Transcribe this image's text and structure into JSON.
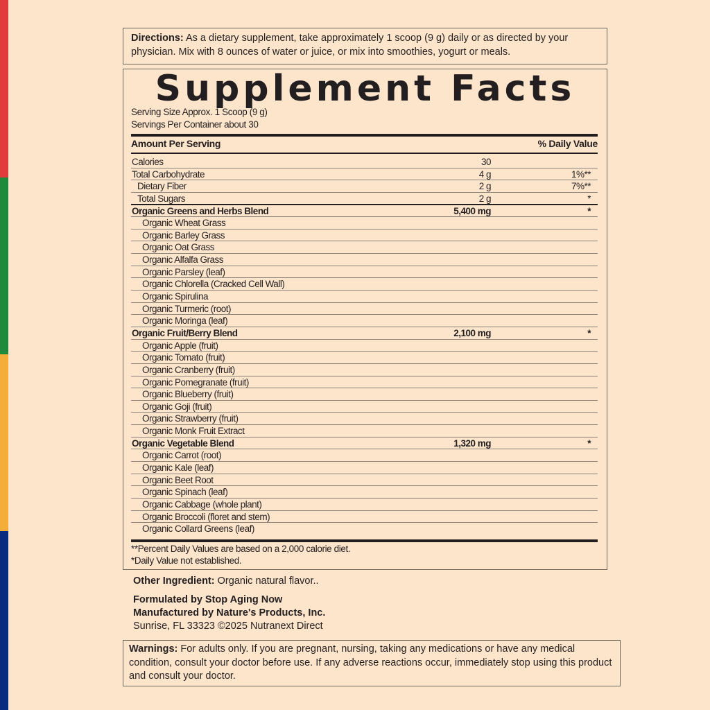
{
  "colors": {
    "background": "#fde5cc",
    "stripes": [
      "#e23b3b",
      "#1f8a3c",
      "#f5ad3a",
      "#0a2a80"
    ]
  },
  "directions": {
    "label": "Directions:",
    "text": " As a dietary supplement, take approximately 1 scoop (9 g) daily or as directed by your physician. Mix with 8 ounces of water or juice, or mix into smoothies, yogurt or meals."
  },
  "facts": {
    "title": "Supplement Facts",
    "serving_size": "Serving Size Approx. 1 Scoop (9 g)",
    "servings_per_container": "Servings Per Container about 30",
    "header_amount": "Amount Per Serving",
    "header_dv": "% Daily Value",
    "rows": [
      {
        "name": "Calories",
        "amount": "30",
        "dv": "",
        "style": "",
        "indent": 0
      },
      {
        "name": "Total Carbohydrate",
        "amount": "4 g",
        "dv": "1%**",
        "indent": 0
      },
      {
        "name": "Dietary Fiber",
        "amount": "2 g",
        "dv": "7%**",
        "indent": 1
      },
      {
        "name": "Total Sugars",
        "amount": "2 g",
        "dv": "*",
        "indent": 1
      },
      {
        "name": "Organic Greens and Herbs Blend",
        "amount": "5,400 mg",
        "dv": "*",
        "bold": true,
        "indent": 0
      },
      {
        "name": "Organic Wheat Grass",
        "indent": 2
      },
      {
        "name": "Organic Barley Grass",
        "indent": 2
      },
      {
        "name": "Organic Oat Grass",
        "indent": 2
      },
      {
        "name": "Organic Alfalfa Grass",
        "indent": 2
      },
      {
        "name": "Organic Parsley (leaf)",
        "indent": 2
      },
      {
        "name": "Organic Chlorella (Cracked Cell Wall)",
        "indent": 2
      },
      {
        "name": "Organic Spirulina",
        "indent": 2
      },
      {
        "name": "Organic Turmeric (root)",
        "indent": 2
      },
      {
        "name": "Organic Moringa (leaf)",
        "indent": 2
      },
      {
        "name": "Organic Fruit/Berry Blend",
        "amount": "2,100 mg",
        "dv": "*",
        "bold": true,
        "indent": 0
      },
      {
        "name": "Organic Apple (fruit)",
        "indent": 2
      },
      {
        "name": "Organic Tomato (fruit)",
        "indent": 2
      },
      {
        "name": "Organic Cranberry (fruit)",
        "indent": 2
      },
      {
        "name": "Organic Pomegranate (fruit)",
        "indent": 2
      },
      {
        "name": "Organic Blueberry (fruit)",
        "indent": 2
      },
      {
        "name": "Organic Goji (fruit)",
        "indent": 2
      },
      {
        "name": "Organic Strawberry (fruit)",
        "indent": 2
      },
      {
        "name": "Organic Monk Fruit Extract",
        "indent": 2
      },
      {
        "name": "Organic Vegetable Blend",
        "amount": "1,320 mg",
        "dv": "*",
        "bold": true,
        "indent": 0
      },
      {
        "name": "Organic Carrot (root)",
        "indent": 2
      },
      {
        "name": "Organic Kale (leaf)",
        "indent": 2
      },
      {
        "name": "Organic Beet Root",
        "indent": 2
      },
      {
        "name": "Organic Spinach (leaf)",
        "indent": 2
      },
      {
        "name": "Organic Cabbage (whole plant)",
        "indent": 2
      },
      {
        "name": "Organic Broccoli (floret and stem)",
        "indent": 2
      },
      {
        "name": "Organic Collard Greens (leaf)",
        "indent": 2
      }
    ],
    "footnote1": "**Percent Daily Values are based on a 2,000 calorie diet.",
    "footnote2": "*Daily Value not established."
  },
  "other_ingredient": {
    "label": "Other Ingredient:",
    "text": " Organic natural flavor.."
  },
  "manufacturer": {
    "line1": "Formulated by Stop Aging Now",
    "line2": "Manufactured by Nature's Products, Inc.",
    "line3": "Sunrise, FL 33323 ©2025 Nutranext Direct"
  },
  "warnings": {
    "label": "Warnings:",
    "text": " For adults only. If you are pregnant, nursing, taking any medications or have any medical condition, consult your doctor before use. If any adverse reactions occur, immediately stop using this product and consult your doctor."
  }
}
